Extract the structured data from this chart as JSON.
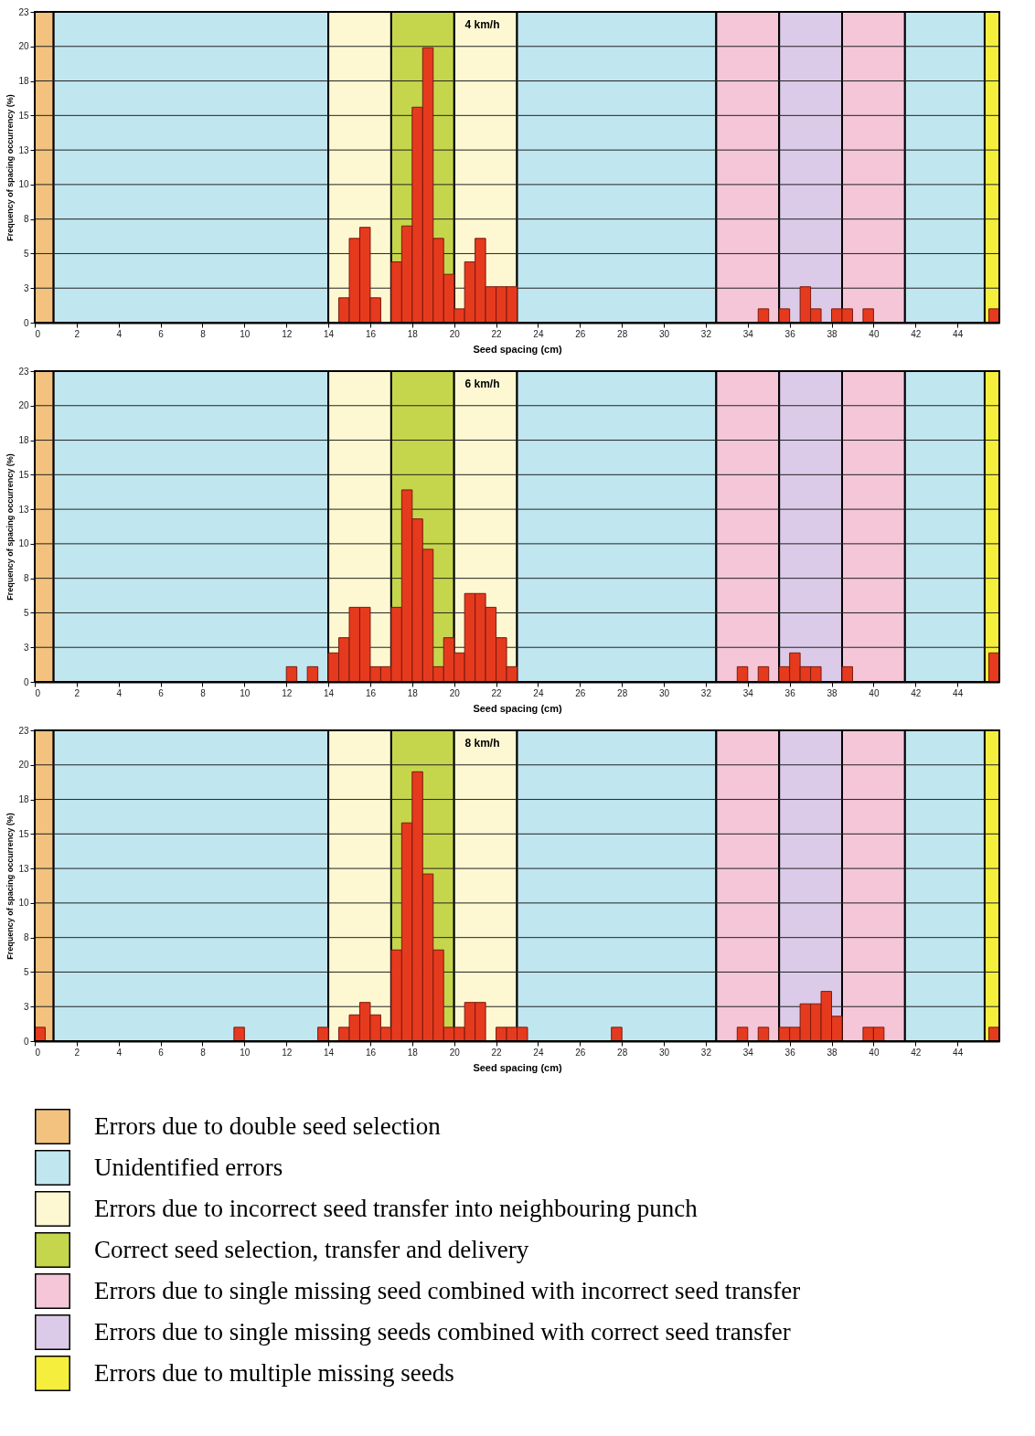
{
  "chart_data": [
    {
      "type": "histogram",
      "title": "4 km/h",
      "legend": "bottom",
      "xlabel": "Seed spacing (cm)",
      "ylabel": "Frequency of spacing occurrency (%)",
      "color": "#e63a1e",
      "bins": [
        0,
        0.5,
        1,
        1.5,
        2,
        2.5,
        3,
        3.5,
        4,
        4.5,
        5,
        5.5,
        6,
        6.5,
        7,
        7.5,
        8,
        8.5,
        9,
        9.5,
        10,
        10.5,
        11,
        11.5,
        12,
        12.5,
        13,
        13.5,
        14,
        14.5,
        15,
        15.5,
        16,
        16.5,
        17,
        17.5,
        18,
        18.5,
        19,
        19.5,
        20,
        20.5,
        21,
        21.5,
        22,
        22.5,
        23,
        23.5,
        24,
        24.5,
        25,
        25.5,
        26,
        26.5,
        27,
        27.5,
        28,
        28.5,
        29,
        29.5,
        30,
        30.5,
        31,
        31.5,
        32,
        32.5,
        33,
        33.5,
        34,
        34.5,
        35,
        35.5,
        36,
        36.5,
        37,
        37.5,
        38,
        38.5,
        39,
        39.5,
        40,
        40.5,
        41,
        41.5,
        42,
        42.5,
        43,
        43.5,
        44,
        44.5,
        45,
        45.5,
        46
      ],
      "values": [
        0,
        0,
        0,
        0,
        0,
        0,
        0,
        0,
        0,
        0,
        0,
        0,
        0,
        0,
        0,
        0,
        0,
        0,
        0,
        0,
        0,
        0,
        0,
        0,
        0,
        0,
        0,
        0,
        0,
        1.8,
        6.1,
        6.9,
        1.8,
        0,
        4.4,
        7.0,
        15.6,
        19.9,
        6.1,
        3.5,
        1.0,
        4.4,
        6.1,
        2.6,
        2.6,
        2.6,
        0,
        0,
        0,
        0,
        0,
        0,
        0,
        0,
        0,
        0,
        0,
        0,
        0,
        0,
        0,
        0,
        0,
        0,
        0,
        0,
        0,
        0,
        0,
        1.0,
        0,
        1.0,
        0,
        2.6,
        1.0,
        0,
        1.0,
        1.0,
        0,
        1.0,
        0,
        0,
        0,
        0,
        0,
        0,
        0,
        0,
        0,
        0,
        0,
        1.0
      ],
      "xlim": [
        0,
        46
      ],
      "xticks": [
        0,
        2,
        4,
        6,
        8,
        10,
        12,
        14,
        16,
        18,
        20,
        22,
        24,
        26,
        28,
        30,
        32,
        34,
        36,
        38,
        40,
        42,
        44
      ],
      "ylim": [
        0,
        22.5
      ],
      "yticks": [
        0,
        {
          "value": 2.5,
          "label": "3"
        },
        5,
        {
          "value": 7.5,
          "label": "8"
        },
        10,
        {
          "value": 12.5,
          "label": "13"
        },
        15,
        {
          "value": 17.5,
          "label": "18"
        },
        20,
        {
          "value": 22.5,
          "label": "23"
        }
      ],
      "grid": "y",
      "bands": [
        {
          "axis": "x",
          "from": 0,
          "to": 0.9,
          "label": "Errors due to double seed selection",
          "color": "#f2c27e"
        },
        {
          "axis": "x",
          "from": 0.9,
          "to": 14,
          "label": "Unidentified errors",
          "color": "#c0e6f0"
        },
        {
          "axis": "x",
          "from": 14,
          "to": 17,
          "label": "Errors due to incorrect seed transfer into neighbouring punch",
          "color": "#fdf8d2"
        },
        {
          "axis": "x",
          "from": 17,
          "to": 20,
          "label": "Correct seed selection, transfer and delivery",
          "color": "#c6d64c"
        },
        {
          "axis": "x",
          "from": 20,
          "to": 23,
          "color": "#fdf8d2"
        },
        {
          "axis": "x",
          "from": 23,
          "to": 32.5,
          "color": "#c0e6f0"
        },
        {
          "axis": "x",
          "from": 32.5,
          "to": 35.5,
          "label": "Errors due to single missing seed combined with incorrect seed transfer",
          "color": "#f4c6d8"
        },
        {
          "axis": "x",
          "from": 35.5,
          "to": 38.5,
          "label": "Errors due to single missing seeds combined with correct seed transfer",
          "color": "#dccbe8"
        },
        {
          "axis": "x",
          "from": 38.5,
          "to": 41.5,
          "color": "#f4c6d8"
        },
        {
          "axis": "x",
          "from": 41.5,
          "to": 45.3,
          "color": "#c0e6f0"
        },
        {
          "axis": "x",
          "from": 45.3,
          "to": 46,
          "label": "Errors due to multiple missing seeds",
          "color": "#f6ee3c"
        }
      ]
    },
    {
      "type": "histogram",
      "title": "6 km/h",
      "xlabel": "Seed spacing (cm)",
      "ylabel": "Frequency of spacing occurrency (%)",
      "color": "#e63a1e",
      "bins": [
        0,
        0.5,
        1,
        1.5,
        2,
        2.5,
        3,
        3.5,
        4,
        4.5,
        5,
        5.5,
        6,
        6.5,
        7,
        7.5,
        8,
        8.5,
        9,
        9.5,
        10,
        10.5,
        11,
        11.5,
        12,
        12.5,
        13,
        13.5,
        14,
        14.5,
        15,
        15.5,
        16,
        16.5,
        17,
        17.5,
        18,
        18.5,
        19,
        19.5,
        20,
        20.5,
        21,
        21.5,
        22,
        22.5,
        23,
        23.5,
        24,
        24.5,
        25,
        25.5,
        26,
        26.5,
        27,
        27.5,
        28,
        28.5,
        29,
        29.5,
        30,
        30.5,
        31,
        31.5,
        32,
        32.5,
        33,
        33.5,
        34,
        34.5,
        35,
        35.5,
        36,
        36.5,
        37,
        37.5,
        38,
        38.5,
        39,
        39.5,
        40,
        40.5,
        41,
        41.5,
        42,
        42.5,
        43,
        43.5,
        44,
        44.5,
        45,
        45.5,
        46
      ],
      "values": [
        0,
        0,
        0,
        0,
        0,
        0,
        0,
        0,
        0,
        0,
        0,
        0,
        0,
        0,
        0,
        0,
        0,
        0,
        0,
        0,
        0,
        0,
        0,
        0,
        1.1,
        0,
        1.1,
        0,
        2.1,
        3.2,
        5.4,
        5.4,
        1.1,
        1.1,
        5.4,
        13.9,
        11.8,
        9.6,
        1.1,
        3.2,
        2.1,
        6.4,
        6.4,
        5.4,
        3.2,
        1.1,
        0,
        0,
        0,
        0,
        0,
        0,
        0,
        0,
        0,
        0,
        0,
        0,
        0,
        0,
        0,
        0,
        0,
        0,
        0,
        0,
        0,
        1.1,
        0,
        1.1,
        0,
        1.1,
        2.1,
        1.1,
        1.1,
        0,
        0,
        1.1,
        0,
        0,
        0,
        0,
        0,
        0,
        0,
        0,
        0,
        0,
        0,
        0,
        0,
        2.1
      ],
      "xlim": [
        0,
        46
      ],
      "xticks": [
        0,
        2,
        4,
        6,
        8,
        10,
        12,
        14,
        16,
        18,
        20,
        22,
        24,
        26,
        28,
        30,
        32,
        34,
        36,
        38,
        40,
        42,
        44
      ],
      "ylim": [
        0,
        22.5
      ],
      "yticks": [
        0,
        {
          "value": 2.5,
          "label": "3"
        },
        5,
        {
          "value": 7.5,
          "label": "8"
        },
        10,
        {
          "value": 12.5,
          "label": "13"
        },
        15,
        {
          "value": 17.5,
          "label": "18"
        },
        20,
        {
          "value": 22.5,
          "label": "23"
        }
      ],
      "grid": "y",
      "bands": [
        {
          "axis": "x",
          "from": 0,
          "to": 0.9,
          "color": "#f2c27e"
        },
        {
          "axis": "x",
          "from": 0.9,
          "to": 14,
          "color": "#c0e6f0"
        },
        {
          "axis": "x",
          "from": 14,
          "to": 17,
          "color": "#fdf8d2"
        },
        {
          "axis": "x",
          "from": 17,
          "to": 20,
          "color": "#c6d64c"
        },
        {
          "axis": "x",
          "from": 20,
          "to": 23,
          "color": "#fdf8d2"
        },
        {
          "axis": "x",
          "from": 23,
          "to": 32.5,
          "color": "#c0e6f0"
        },
        {
          "axis": "x",
          "from": 32.5,
          "to": 35.5,
          "color": "#f4c6d8"
        },
        {
          "axis": "x",
          "from": 35.5,
          "to": 38.5,
          "color": "#dccbe8"
        },
        {
          "axis": "x",
          "from": 38.5,
          "to": 41.5,
          "color": "#f4c6d8"
        },
        {
          "axis": "x",
          "from": 41.5,
          "to": 45.3,
          "color": "#c0e6f0"
        },
        {
          "axis": "x",
          "from": 45.3,
          "to": 46,
          "color": "#f6ee3c"
        }
      ]
    },
    {
      "type": "histogram",
      "title": "8 km/h",
      "xlabel": "Seed spacing (cm)",
      "ylabel": "Frequency of spacing occurrency (%)",
      "color": "#e63a1e",
      "bins": [
        0,
        0.5,
        1,
        1.5,
        2,
        2.5,
        3,
        3.5,
        4,
        4.5,
        5,
        5.5,
        6,
        6.5,
        7,
        7.5,
        8,
        8.5,
        9,
        9.5,
        10,
        10.5,
        11,
        11.5,
        12,
        12.5,
        13,
        13.5,
        14,
        14.5,
        15,
        15.5,
        16,
        16.5,
        17,
        17.5,
        18,
        18.5,
        19,
        19.5,
        20,
        20.5,
        21,
        21.5,
        22,
        22.5,
        23,
        23.5,
        24,
        24.5,
        25,
        25.5,
        26,
        26.5,
        27,
        27.5,
        28,
        28.5,
        29,
        29.5,
        30,
        30.5,
        31,
        31.5,
        32,
        32.5,
        33,
        33.5,
        34,
        34.5,
        35,
        35.5,
        36,
        36.5,
        37,
        37.5,
        38,
        38.5,
        39,
        39.5,
        40,
        40.5,
        41,
        41.5,
        42,
        42.5,
        43,
        43.5,
        44,
        44.5,
        45,
        45.5,
        46
      ],
      "values": [
        1.0,
        0,
        0,
        0,
        0,
        0,
        0,
        0,
        0,
        0,
        0,
        0,
        0,
        0,
        0,
        0,
        0,
        0,
        0,
        1.0,
        0,
        0,
        0,
        0,
        0,
        0,
        0,
        1.0,
        0,
        1.0,
        1.9,
        2.8,
        1.9,
        1.0,
        6.6,
        15.8,
        19.5,
        12.1,
        6.6,
        1.0,
        1.0,
        2.8,
        2.8,
        0,
        1.0,
        1.0,
        1.0,
        0,
        0,
        0,
        0,
        0,
        0,
        0,
        0,
        1.0,
        0,
        0,
        0,
        0,
        0,
        0,
        0,
        0,
        0,
        0,
        0,
        1.0,
        0,
        1.0,
        0,
        1.0,
        1.0,
        2.7,
        2.7,
        3.6,
        1.8,
        0,
        0,
        1.0,
        1.0,
        0,
        0,
        0,
        0,
        0,
        0,
        0,
        0,
        0,
        0,
        1.0
      ],
      "xlim": [
        0,
        46
      ],
      "xticks": [
        0,
        2,
        4,
        6,
        8,
        10,
        12,
        14,
        16,
        18,
        20,
        22,
        24,
        26,
        28,
        30,
        32,
        34,
        36,
        38,
        40,
        42,
        44
      ],
      "ylim": [
        0,
        22.5
      ],
      "yticks": [
        0,
        {
          "value": 2.5,
          "label": "3"
        },
        5,
        {
          "value": 7.5,
          "label": "8"
        },
        10,
        {
          "value": 12.5,
          "label": "13"
        },
        15,
        {
          "value": 17.5,
          "label": "18"
        },
        20,
        {
          "value": 22.5,
          "label": "23"
        }
      ],
      "grid": "y",
      "bands": [
        {
          "axis": "x",
          "from": 0,
          "to": 0.9,
          "color": "#f2c27e"
        },
        {
          "axis": "x",
          "from": 0.9,
          "to": 14,
          "color": "#c0e6f0"
        },
        {
          "axis": "x",
          "from": 14,
          "to": 17,
          "color": "#fdf8d2"
        },
        {
          "axis": "x",
          "from": 17,
          "to": 20,
          "color": "#c6d64c"
        },
        {
          "axis": "x",
          "from": 20,
          "to": 23,
          "color": "#fdf8d2"
        },
        {
          "axis": "x",
          "from": 23,
          "to": 32.5,
          "color": "#c0e6f0"
        },
        {
          "axis": "x",
          "from": 32.5,
          "to": 35.5,
          "color": "#f4c6d8"
        },
        {
          "axis": "x",
          "from": 35.5,
          "to": 38.5,
          "color": "#dccbe8"
        },
        {
          "axis": "x",
          "from": 38.5,
          "to": 41.5,
          "color": "#f4c6d8"
        },
        {
          "axis": "x",
          "from": 41.5,
          "to": 45.3,
          "color": "#c0e6f0"
        },
        {
          "axis": "x",
          "from": 45.3,
          "to": 46,
          "color": "#f6ee3c"
        }
      ]
    }
  ]
}
